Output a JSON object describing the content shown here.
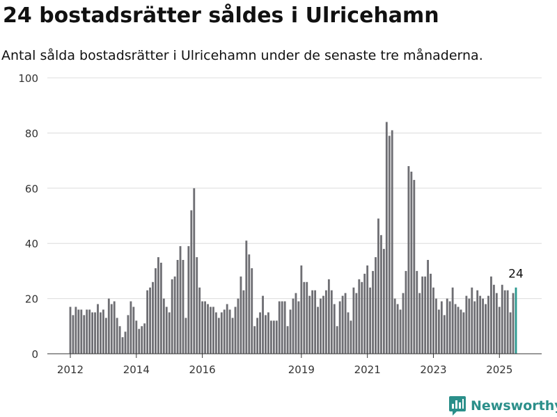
{
  "chart_data": {
    "type": "bar",
    "title": "24 bostadsrätter såldes i Ulricehamn",
    "subtitle": "Antal sålda bostadsrätter i Ulricehamn under de senaste tre månaderna.",
    "xlabel": "",
    "ylabel": "",
    "ylim": [
      0,
      100
    ],
    "yticks": [
      0,
      20,
      40,
      60,
      80,
      100
    ],
    "xticks": [
      "2012",
      "2014",
      "2016",
      "2019",
      "2021",
      "2023",
      "2025"
    ],
    "grid": true,
    "legend": "none",
    "bar_color": "#6e6e73",
    "highlight_color": "#2b9990",
    "highlight_label": "24",
    "values": [
      17,
      14,
      17,
      16,
      16,
      14,
      16,
      16,
      15,
      15,
      18,
      15,
      16,
      13,
      20,
      18,
      19,
      13,
      10,
      6,
      8,
      14,
      19,
      17,
      12,
      9,
      10,
      11,
      23,
      24,
      26,
      31,
      35,
      33,
      20,
      17,
      15,
      27,
      28,
      34,
      39,
      34,
      13,
      39,
      52,
      60,
      35,
      24,
      19,
      19,
      18,
      17,
      17,
      15,
      13,
      15,
      16,
      18,
      16,
      13,
      17,
      20,
      28,
      23,
      41,
      36,
      31,
      10,
      13,
      15,
      21,
      14,
      15,
      12,
      12,
      12,
      19,
      19,
      19,
      10,
      16,
      20,
      22,
      19,
      32,
      26,
      26,
      21,
      23,
      23,
      17,
      20,
      21,
      23,
      27,
      23,
      18,
      10,
      19,
      21,
      22,
      15,
      12,
      24,
      22,
      27,
      26,
      29,
      32,
      24,
      30,
      35,
      49,
      43,
      38,
      84,
      79,
      81,
      20,
      18,
      16,
      22,
      30,
      68,
      66,
      63,
      30,
      22,
      28,
      28,
      34,
      29,
      24,
      20,
      16,
      19,
      14,
      20,
      19,
      24,
      18,
      17,
      16,
      15,
      21,
      20,
      24,
      19,
      23,
      21,
      20,
      18,
      21,
      28,
      25,
      22,
      17,
      25,
      23,
      23,
      15,
      22,
      24
    ]
  },
  "brand": {
    "name": "Newsworthy",
    "icon": "bar-chart-logo-icon",
    "color": "#2b8f8a"
  }
}
